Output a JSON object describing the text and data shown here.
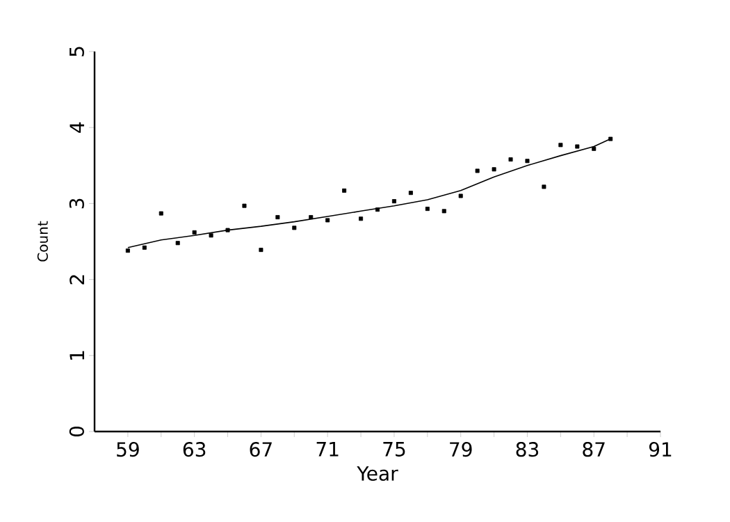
{
  "chart_data": {
    "type": "scatter",
    "xlabel": "Year",
    "ylabel": "Count",
    "marker": "square",
    "xlim": [
      57,
      91
    ],
    "ylim": [
      0,
      5
    ],
    "xticks": [
      59,
      {
        "value": 61,
        "label": null
      },
      63,
      {
        "value": 65,
        "label": null
      },
      67,
      {
        "value": 69,
        "label": null
      },
      71,
      {
        "value": 73,
        "label": null
      },
      75,
      {
        "value": 77,
        "label": null
      },
      79,
      {
        "value": 81,
        "label": null
      },
      83,
      {
        "value": 85,
        "label": null
      },
      87,
      {
        "value": 89,
        "label": null
      },
      91
    ],
    "yticks": [
      0,
      1,
      2,
      3,
      4,
      5
    ],
    "series": [
      {
        "color": "#000000",
        "x": [
          59,
          60,
          61,
          62,
          63,
          64,
          65,
          66,
          67,
          68,
          69,
          70,
          71,
          72,
          73,
          74,
          75,
          76,
          77,
          78,
          79,
          80,
          81,
          82,
          83,
          84,
          85,
          86,
          87,
          88
        ],
        "values": [
          2.38,
          2.42,
          2.87,
          2.48,
          2.62,
          2.58,
          2.65,
          2.97,
          2.39,
          2.82,
          2.68,
          2.82,
          2.78,
          3.17,
          2.8,
          2.92,
          3.03,
          3.14,
          2.93,
          2.9,
          3.1,
          3.43,
          3.45,
          3.58,
          3.56,
          3.22,
          3.77,
          3.75,
          3.72,
          3.85
        ]
      },
      {
        "type": "line",
        "color": "#000000",
        "marker": "none",
        "x": [
          59,
          61,
          63,
          65,
          67,
          69,
          71,
          73,
          75,
          77,
          79,
          81,
          83,
          85,
          87,
          88
        ],
        "values": [
          2.42,
          2.52,
          2.58,
          2.65,
          2.7,
          2.76,
          2.83,
          2.9,
          2.97,
          3.05,
          3.17,
          3.35,
          3.5,
          3.63,
          3.75,
          3.85
        ]
      }
    ]
  }
}
